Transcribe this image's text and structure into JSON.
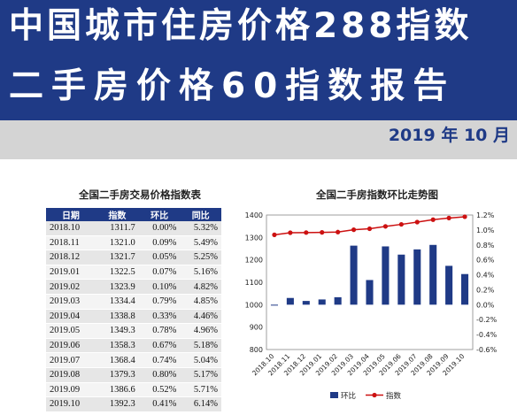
{
  "banner": {
    "title_line1": "中国城市住房价格288指数",
    "title_line2": "二手房价格60指数报告",
    "date": "2019 年 10 月"
  },
  "table": {
    "title": "全国二手房交易价格指数表",
    "headers": [
      "日期",
      "指数",
      "环比",
      "同比"
    ],
    "rows": [
      [
        "2018.10",
        "1311.7",
        "0.00%",
        "5.32%"
      ],
      [
        "2018.11",
        "1321.0",
        "0.09%",
        "5.49%"
      ],
      [
        "2018.12",
        "1321.7",
        "0.05%",
        "5.25%"
      ],
      [
        "2019.01",
        "1322.5",
        "0.07%",
        "5.16%"
      ],
      [
        "2019.02",
        "1323.9",
        "0.10%",
        "4.82%"
      ],
      [
        "2019.03",
        "1334.4",
        "0.79%",
        "4.85%"
      ],
      [
        "2019.04",
        "1338.8",
        "0.33%",
        "4.46%"
      ],
      [
        "2019.05",
        "1349.3",
        "0.78%",
        "4.96%"
      ],
      [
        "2019.06",
        "1358.3",
        "0.67%",
        "5.18%"
      ],
      [
        "2019.07",
        "1368.4",
        "0.74%",
        "5.04%"
      ],
      [
        "2019.08",
        "1379.3",
        "0.80%",
        "5.17%"
      ],
      [
        "2019.09",
        "1386.6",
        "0.52%",
        "5.71%"
      ],
      [
        "2019.10",
        "1392.3",
        "0.41%",
        "6.14%"
      ]
    ]
  },
  "chart_data": {
    "type": "bar",
    "title": "全国二手房指数环比走势图",
    "categories": [
      "2018.10",
      "2018.11",
      "2018.12",
      "2019.01",
      "2019.02",
      "2019.03",
      "2019.04",
      "2019.05",
      "2019.06",
      "2019.07",
      "2019.08",
      "2019.09",
      "2019.10"
    ],
    "series": [
      {
        "name": "环比",
        "type": "bar",
        "axis": "right",
        "color": "#1f3a86",
        "values": [
          0.0,
          0.09,
          0.05,
          0.07,
          0.1,
          0.79,
          0.33,
          0.78,
          0.67,
          0.74,
          0.8,
          0.52,
          0.41
        ]
      },
      {
        "name": "指数",
        "type": "line",
        "axis": "left",
        "color": "#cc1111",
        "values": [
          1311.7,
          1321.0,
          1321.7,
          1322.5,
          1323.9,
          1334.4,
          1338.8,
          1349.3,
          1358.3,
          1368.4,
          1379.3,
          1386.6,
          1392.3
        ]
      }
    ],
    "y_left": {
      "min": 800,
      "max": 1400,
      "ticks": [
        "1400",
        "1300",
        "1200",
        "1100",
        "1000",
        "900",
        "800"
      ]
    },
    "y_right": {
      "min": -0.6,
      "max": 1.2,
      "ticks": [
        "1.2%",
        "1.0%",
        "0.8%",
        "0.6%",
        "0.4%",
        "0.2%",
        "0.0%",
        "-0.2%",
        "-0.4%",
        "-0.6%"
      ]
    },
    "legend_position": "bottom"
  }
}
